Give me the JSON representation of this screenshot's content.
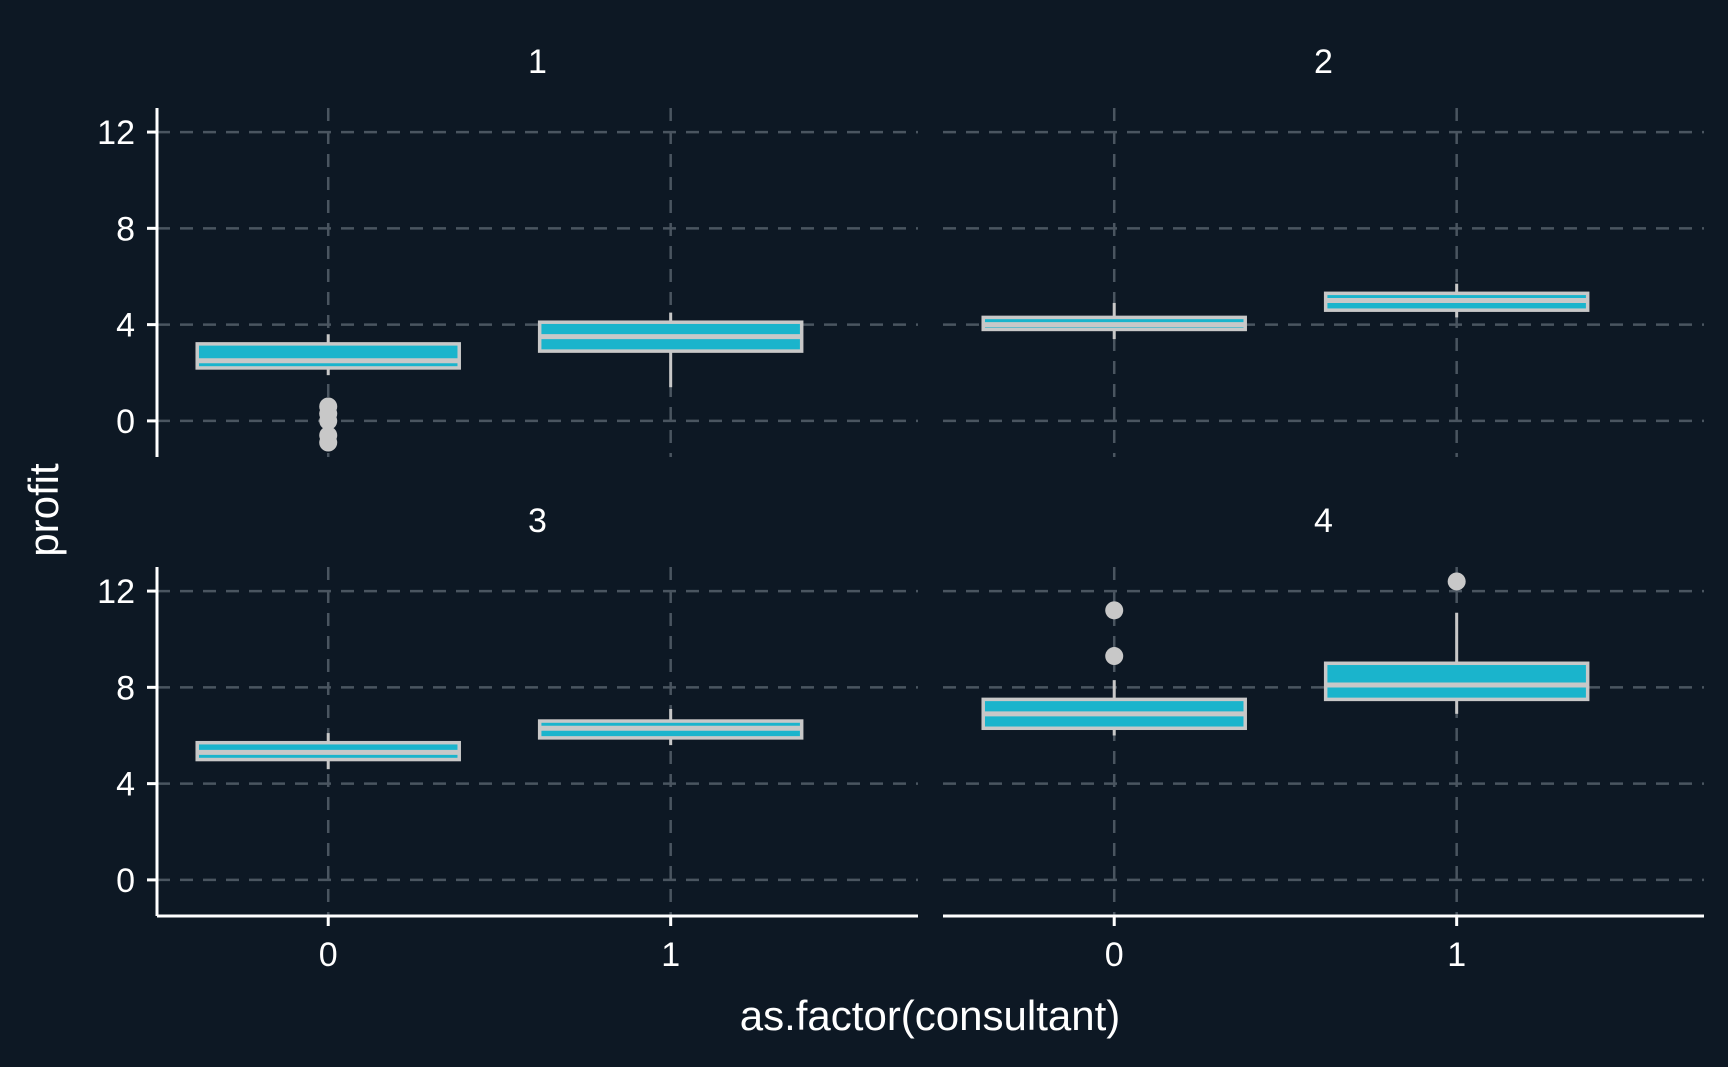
{
  "chart_data": {
    "type": "boxplot",
    "xlabel": "as.factor(consultant)",
    "ylabel": "profit",
    "categories": [
      "0",
      "1"
    ],
    "ylim": [
      -1.5,
      13
    ],
    "yticks": [
      0,
      4,
      8,
      12
    ],
    "grid": true,
    "colors": {
      "background": "#0d1824",
      "grid": "#4a5560",
      "axis": "#ffffff",
      "box_fill": "#1ab4cc",
      "box_line": "#c8c8c8",
      "points": "#c8c8c8"
    },
    "panels": [
      {
        "label": "1",
        "boxes": [
          {
            "category": "0",
            "whisker_low": 1.9,
            "q1": 2.2,
            "q2": 2.5,
            "q3": 3.2,
            "whisker_high": 3.6,
            "outliers": [
              0.6,
              0.3,
              0.0,
              -0.6,
              -0.9
            ]
          },
          {
            "category": "1",
            "whisker_low": 1.4,
            "q1": 2.9,
            "q2": 3.5,
            "q3": 4.1,
            "whisker_high": 4.5,
            "outliers": []
          }
        ]
      },
      {
        "label": "2",
        "boxes": [
          {
            "category": "0",
            "whisker_low": 3.4,
            "q1": 3.8,
            "q2": 4.0,
            "q3": 4.3,
            "whisker_high": 4.9,
            "outliers": []
          },
          {
            "category": "1",
            "whisker_low": 4.3,
            "q1": 4.6,
            "q2": 5.0,
            "q3": 5.3,
            "whisker_high": 5.7,
            "outliers": []
          }
        ]
      },
      {
        "label": "3",
        "boxes": [
          {
            "category": "0",
            "whisker_low": 4.6,
            "q1": 5.0,
            "q2": 5.3,
            "q3": 5.7,
            "whisker_high": 6.1,
            "outliers": []
          },
          {
            "category": "1",
            "whisker_low": 5.6,
            "q1": 5.9,
            "q2": 6.3,
            "q3": 6.6,
            "whisker_high": 7.1,
            "outliers": []
          }
        ]
      },
      {
        "label": "4",
        "boxes": [
          {
            "category": "0",
            "whisker_low": 6.0,
            "q1": 6.3,
            "q2": 6.9,
            "q3": 7.5,
            "whisker_high": 8.3,
            "outliers": [
              9.3,
              11.2
            ]
          },
          {
            "category": "1",
            "whisker_low": 6.9,
            "q1": 7.5,
            "q2": 8.1,
            "q3": 9.0,
            "whisker_high": 11.1,
            "outliers": [
              12.4
            ]
          }
        ]
      }
    ]
  }
}
